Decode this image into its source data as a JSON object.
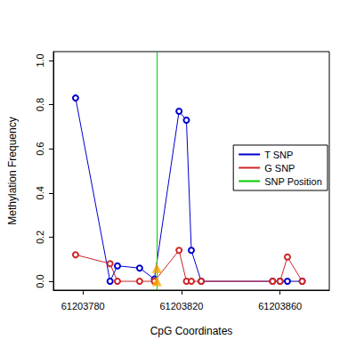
{
  "chart_data": {
    "type": "line",
    "x_label": "CpG Coordinates",
    "y_label": "Methylation Frequency",
    "xlim": [
      61203768,
      61203880
    ],
    "xticks": [
      61203780,
      61203820,
      61203860
    ],
    "ylim": [
      -0.04,
      1.04
    ],
    "yticks": [
      {
        "value": 0,
        "label": "0.0"
      },
      0.2,
      0.4,
      0.6,
      0.8,
      {
        "value": 1,
        "label": "1.0"
      }
    ],
    "grid": false,
    "legend": "right",
    "series": [
      {
        "name": "T SNP",
        "color": "#0000cd",
        "marker": "open_circle",
        "line_style": "solid",
        "x": [
          61203777,
          61203791,
          61203794,
          61203803,
          61203809,
          61203819,
          61203822,
          61203824,
          61203828,
          61203857,
          61203860,
          61203863,
          61203869
        ],
        "values": [
          0.83,
          0.0,
          0.07,
          0.06,
          0.01,
          0.77,
          0.73,
          0.14,
          0.0,
          0.0,
          0.0,
          0.0,
          0.0
        ]
      },
      {
        "name": "G SNP",
        "color": "#cd2626",
        "marker": "open_circle",
        "line_style": "solid",
        "x": [
          61203777,
          61203791,
          61203794,
          61203803,
          61203809,
          61203819,
          61203822,
          61203824,
          61203828,
          61203857,
          61203860,
          61203863,
          61203869
        ],
        "values": [
          0.12,
          0.08,
          0.0,
          0.0,
          0.0,
          0.14,
          0.0,
          0.0,
          0.0,
          0.0,
          0.0,
          0.11,
          0.0
        ]
      }
    ],
    "snp_position": {
      "name": "SNP Position",
      "color": "#00cd00",
      "x": 61203810
    },
    "snp_markers": {
      "color": "#ffa500",
      "marker": "triangle",
      "x": [
        61203810,
        61203810
      ],
      "values": [
        0.06,
        0.0
      ]
    }
  }
}
